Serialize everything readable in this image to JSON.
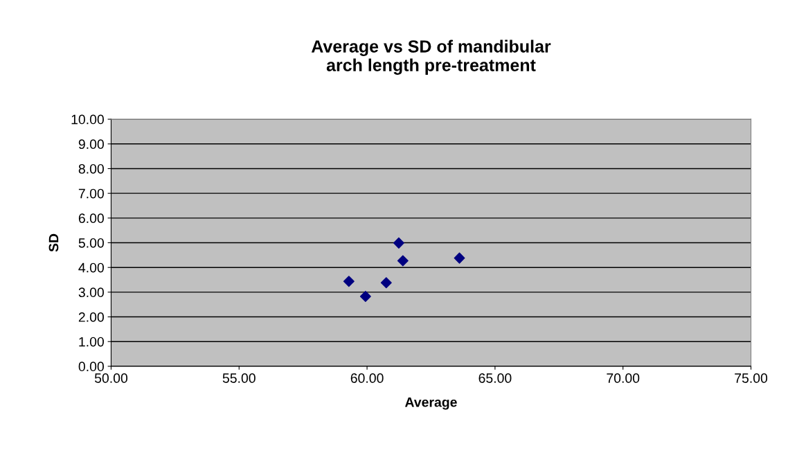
{
  "chart_data": {
    "type": "scatter",
    "title": "Average vs SD of mandibular\narch length pre-treatment",
    "xlabel": "Average",
    "ylabel": "SD",
    "x": [
      59.29,
      59.94,
      60.75,
      61.24,
      61.4,
      63.61
    ],
    "series": [
      {
        "color": "#000080",
        "values": [
          3.44,
          2.83,
          3.38,
          4.99,
          4.27,
          4.38
        ]
      }
    ],
    "xlim": [
      50,
      75
    ],
    "xticks": [
      {
        "value": 50,
        "label": "50.00"
      },
      {
        "value": 55,
        "label": "55.00"
      },
      {
        "value": 60,
        "label": "60.00"
      },
      {
        "value": 65,
        "label": "65.00"
      },
      {
        "value": 70,
        "label": "70.00"
      },
      {
        "value": 75,
        "label": "75.00"
      }
    ],
    "ylim": [
      0,
      10
    ],
    "yticks": [
      {
        "value": 0,
        "label": "0.00"
      },
      {
        "value": 1,
        "label": "1.00"
      },
      {
        "value": 2,
        "label": "2.00"
      },
      {
        "value": 3,
        "label": "3.00"
      },
      {
        "value": 4,
        "label": "4.00"
      },
      {
        "value": 5,
        "label": "5.00"
      },
      {
        "value": 6,
        "label": "6.00"
      },
      {
        "value": 7,
        "label": "7.00"
      },
      {
        "value": 8,
        "label": "8.00"
      },
      {
        "value": 9,
        "label": "9.00"
      },
      {
        "value": 10,
        "label": "10.00"
      }
    ],
    "grid": "y",
    "marker": "diamond",
    "legend": false
  }
}
